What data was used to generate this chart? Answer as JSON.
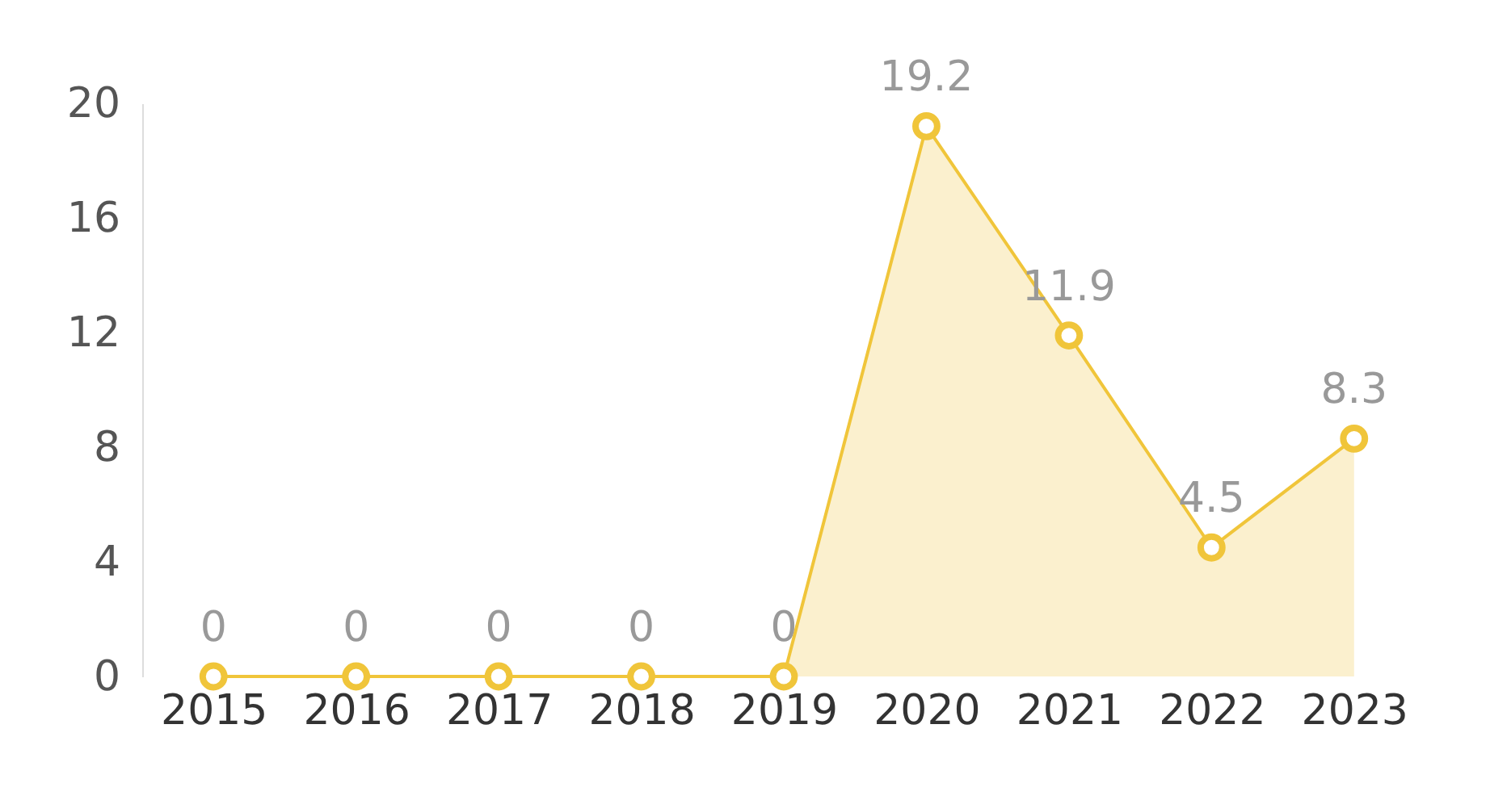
{
  "chart_data": {
    "type": "area",
    "categories": [
      "2015",
      "2016",
      "2017",
      "2018",
      "2019",
      "2020",
      "2021",
      "2022",
      "2023"
    ],
    "series": [
      {
        "color": "#f0c53a",
        "values": [
          0,
          0,
          0,
          0,
          0,
          19.2,
          11.9,
          4.5,
          8.3
        ]
      }
    ],
    "ylim": [
      0,
      20
    ],
    "yticks": [
      0,
      4,
      8,
      12,
      16,
      20
    ],
    "grid": false,
    "marker": "circle",
    "line_style": "solid",
    "data_labels": true
  }
}
